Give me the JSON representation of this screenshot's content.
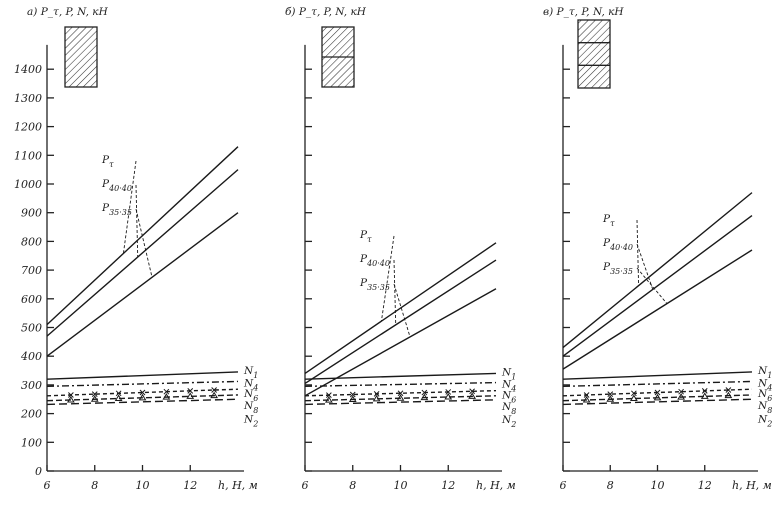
{
  "chart_data": [
    {
      "type": "line",
      "panel_label": "а)",
      "ylabel": "P_τ, P, N, кН",
      "xlabel": "h, H, м",
      "x_ticks": [
        6,
        8,
        10,
        12
      ],
      "y_ticks": [
        0,
        100,
        200,
        300,
        400,
        500,
        600,
        700,
        800,
        900,
        1000,
        1100,
        1200,
        1300,
        1400
      ],
      "y_tick_labels": [
        "0",
        "100",
        "200",
        "300",
        "400",
        "500",
        "600",
        "700",
        "800",
        "900",
        "1000",
        "1100",
        "1200",
        "1300",
        "1400"
      ],
      "xlim": [
        6,
        14
      ],
      "ylim": [
        0,
        1450
      ],
      "series": [
        {
          "name": "P_τ",
          "style": "solid",
          "x": [
            6,
            14
          ],
          "y": [
            510,
            1130
          ]
        },
        {
          "name": "P_40·40",
          "style": "solid",
          "x": [
            6,
            14
          ],
          "y": [
            470,
            1050
          ]
        },
        {
          "name": "P_35·35",
          "style": "solid",
          "x": [
            6,
            14
          ],
          "y": [
            400,
            900
          ]
        },
        {
          "name": "N_1",
          "style": "solid",
          "x": [
            6,
            14
          ],
          "y": [
            320,
            345
          ]
        },
        {
          "name": "N_4",
          "style": "dashdot",
          "x": [
            6,
            14
          ],
          "y": [
            295,
            312
          ]
        },
        {
          "name": "N_6",
          "style": "x-marked",
          "x": [
            6,
            14
          ],
          "y": [
            262,
            285
          ]
        },
        {
          "name": "N_8",
          "style": "triangle-marked",
          "x": [
            6,
            14
          ],
          "y": [
            245,
            265
          ]
        },
        {
          "name": "N_2",
          "style": "dashed",
          "x": [
            6,
            14
          ],
          "y": [
            232,
            250
          ]
        }
      ]
    },
    {
      "type": "line",
      "panel_label": "б)",
      "ylabel": "P_τ, P, N, кН",
      "xlabel": "h, H, м",
      "x_ticks": [
        6,
        8,
        10,
        12
      ],
      "y_ticks": [
        0,
        100,
        200,
        300,
        400,
        500,
        600,
        700,
        800,
        900,
        1000,
        1100,
        1200,
        1300,
        1400
      ],
      "xlim": [
        6,
        14
      ],
      "ylim": [
        0,
        1450
      ],
      "series": [
        {
          "name": "P_τ",
          "style": "solid",
          "x": [
            6,
            14
          ],
          "y": [
            340,
            795
          ]
        },
        {
          "name": "P_40·40",
          "style": "solid",
          "x": [
            6,
            14
          ],
          "y": [
            305,
            735
          ]
        },
        {
          "name": "P_35·35",
          "style": "solid",
          "x": [
            6,
            14
          ],
          "y": [
            262,
            635
          ]
        },
        {
          "name": "N_1",
          "style": "solid",
          "x": [
            6,
            14
          ],
          "y": [
            320,
            340
          ]
        },
        {
          "name": "N_4",
          "style": "dashdot",
          "x": [
            6,
            14
          ],
          "y": [
            295,
            308
          ]
        },
        {
          "name": "N_6",
          "style": "x-marked",
          "x": [
            6,
            14
          ],
          "y": [
            262,
            280
          ]
        },
        {
          "name": "N_8",
          "style": "triangle-marked",
          "x": [
            6,
            14
          ],
          "y": [
            245,
            262
          ]
        },
        {
          "name": "N_2",
          "style": "dashed",
          "x": [
            6,
            14
          ],
          "y": [
            232,
            248
          ]
        }
      ]
    },
    {
      "type": "line",
      "panel_label": "в)",
      "ylabel": "P_τ, P, N, кН",
      "xlabel": "h, H, м",
      "x_ticks": [
        6,
        8,
        10,
        12
      ],
      "y_ticks": [
        0,
        100,
        200,
        300,
        400,
        500,
        600,
        700,
        800,
        900,
        1000,
        1100,
        1200,
        1300,
        1400
      ],
      "xlim": [
        6,
        14
      ],
      "ylim": [
        0,
        1450
      ],
      "series": [
        {
          "name": "P_τ",
          "style": "solid",
          "x": [
            6,
            14
          ],
          "y": [
            430,
            970
          ]
        },
        {
          "name": "P_40·40",
          "style": "solid",
          "x": [
            6,
            14
          ],
          "y": [
            400,
            890
          ]
        },
        {
          "name": "P_35·35",
          "style": "solid",
          "x": [
            6,
            14
          ],
          "y": [
            355,
            770
          ]
        },
        {
          "name": "N_1",
          "style": "solid",
          "x": [
            6,
            14
          ],
          "y": [
            320,
            345
          ]
        },
        {
          "name": "N_4",
          "style": "dashdot",
          "x": [
            6,
            14
          ],
          "y": [
            295,
            312
          ]
        },
        {
          "name": "N_6",
          "style": "x-marked",
          "x": [
            6,
            14
          ],
          "y": [
            262,
            285
          ]
        },
        {
          "name": "N_8",
          "style": "triangle-marked",
          "x": [
            6,
            14
          ],
          "y": [
            245,
            265
          ]
        },
        {
          "name": "N_2",
          "style": "dashed",
          "x": [
            6,
            14
          ],
          "y": [
            232,
            250
          ]
        }
      ]
    }
  ]
}
